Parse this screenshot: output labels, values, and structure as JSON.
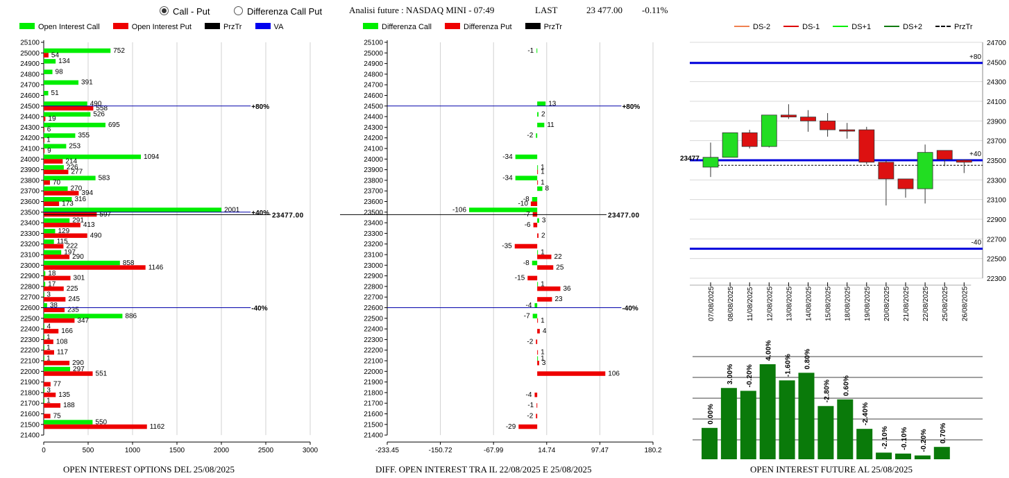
{
  "header": {
    "radio_call_put": "Call - Put",
    "radio_diff": "Differenza Call Put",
    "title": "Analisi future : NASDAQ MINI - 07:49",
    "last_label": "LAST",
    "last_value": "23 477.00",
    "change": "-0.11%"
  },
  "left_legend": [
    "Open Interest Call",
    "Open Interest Put",
    "PrzTr",
    "VA"
  ],
  "mid_legend": [
    "Differenza Call",
    "Differenza Put",
    "PrzTr"
  ],
  "right_legend": [
    "DS-2",
    "DS-1",
    "DS+1",
    "DS+2",
    "PrzTr"
  ],
  "colors": {
    "green": "#00ee00",
    "red": "#ee0000",
    "blue": "#0000cc",
    "navy": "#0000aa",
    "dark_green": "#0f7a0f",
    "orange": "#f08050"
  },
  "captions": {
    "left": "OPEN INTEREST OPTIONS DEL 25/08/2025",
    "mid": "DIFF. OPEN INTEREST TRA IL 22/08/2025 E 25/08/2025",
    "right": "OPEN INTEREST FUTURE AL 25/08/2025"
  },
  "chart_data": [
    {
      "type": "bar",
      "title": "OPEN INTEREST OPTIONS DEL 25/08/2025",
      "orientation": "horizontal",
      "strikes": [
        25100,
        25000,
        24900,
        24800,
        24700,
        24600,
        24500,
        24400,
        24300,
        24200,
        24100,
        24000,
        23900,
        23800,
        23700,
        23600,
        23500,
        23400,
        23300,
        23200,
        23100,
        23000,
        22900,
        22800,
        22700,
        22600,
        22500,
        22400,
        22300,
        22200,
        22100,
        22000,
        21900,
        21800,
        21700,
        21600,
        21500,
        21400
      ],
      "xticks": [
        0,
        500,
        1000,
        1500,
        2000,
        2500,
        3000
      ],
      "xlim": [
        0,
        3000
      ],
      "series": [
        {
          "name": "Open Interest Call",
          "points": [
            [
              25000,
              752
            ],
            [
              24900,
              134
            ],
            [
              24800,
              98
            ],
            [
              24700,
              391
            ],
            [
              24600,
              51
            ],
            [
              24500,
              490
            ],
            [
              24400,
              526
            ],
            [
              24300,
              695
            ],
            [
              24200,
              355
            ],
            [
              24100,
              253
            ],
            [
              24000,
              1094
            ],
            [
              23900,
              226
            ],
            [
              23800,
              583
            ],
            [
              23700,
              270
            ],
            [
              23600,
              316
            ],
            [
              23500,
              2001
            ],
            [
              23400,
              291
            ],
            [
              23300,
              129
            ],
            [
              23200,
              115
            ],
            [
              23100,
              197
            ],
            [
              23000,
              858
            ],
            [
              22900,
              18
            ],
            [
              22800,
              17
            ],
            [
              22700,
              3
            ],
            [
              22600,
              38
            ],
            [
              22500,
              886
            ],
            [
              22400,
              4
            ],
            [
              22300,
              1
            ],
            [
              22200,
              1
            ],
            [
              22100,
              1
            ],
            [
              22000,
              297
            ],
            [
              21800,
              3
            ],
            [
              21700,
              1
            ],
            [
              21500,
              550
            ]
          ]
        },
        {
          "name": "Open Interest Put",
          "points": [
            [
              25000,
              54
            ],
            [
              24500,
              558
            ],
            [
              24400,
              19
            ],
            [
              24300,
              6
            ],
            [
              24200,
              1
            ],
            [
              24100,
              9
            ],
            [
              24000,
              214
            ],
            [
              23900,
              277
            ],
            [
              23800,
              70
            ],
            [
              23700,
              394
            ],
            [
              23600,
              173
            ],
            [
              23500,
              597
            ],
            [
              23400,
              413
            ],
            [
              23300,
              490
            ],
            [
              23200,
              222
            ],
            [
              23100,
              290
            ],
            [
              23000,
              1146
            ],
            [
              22900,
              301
            ],
            [
              22800,
              225
            ],
            [
              22700,
              245
            ],
            [
              22600,
              235
            ],
            [
              22500,
              347
            ],
            [
              22400,
              166
            ],
            [
              22300,
              108
            ],
            [
              22200,
              117
            ],
            [
              22100,
              290
            ],
            [
              22000,
              551
            ],
            [
              21900,
              77
            ],
            [
              21800,
              135
            ],
            [
              21700,
              188
            ],
            [
              21600,
              75
            ],
            [
              21500,
              1162
            ]
          ]
        }
      ],
      "levels": [
        {
          "label": "+80%",
          "strike": 24500,
          "x": 2330
        },
        {
          "label": "+40%",
          "strike": 23500,
          "x": 2330
        },
        {
          "label": "-40%",
          "strike": 22600,
          "x": 2330
        }
      ],
      "price_line": {
        "value": 23477,
        "label": "23477.00"
      }
    },
    {
      "type": "bar",
      "title": "DIFF. OPEN INTEREST TRA IL 22/08/2025 E 25/08/2025",
      "orientation": "horizontal",
      "strikes": [
        25100,
        25000,
        24900,
        24800,
        24700,
        24600,
        24500,
        24400,
        24300,
        24200,
        24100,
        24000,
        23900,
        23800,
        23700,
        23600,
        23500,
        23400,
        23300,
        23200,
        23100,
        23000,
        22900,
        22800,
        22700,
        22600,
        22500,
        22400,
        22300,
        22200,
        22100,
        22000,
        21900,
        21800,
        21700,
        21600,
        21500,
        21400
      ],
      "xticks": [
        "-233.45",
        "-150.72",
        "-67.99",
        "14.74",
        "97.47",
        "180.2"
      ],
      "xlim": [
        -233.45,
        180.2
      ],
      "series": [
        {
          "name": "Differenza Call",
          "points": [
            [
              25000,
              -1
            ],
            [
              24500,
              13
            ],
            [
              24400,
              2
            ],
            [
              24300,
              11
            ],
            [
              24200,
              -2
            ],
            [
              24000,
              -34
            ],
            [
              23900,
              1
            ],
            [
              23800,
              -34
            ],
            [
              23700,
              8
            ],
            [
              23600,
              -8
            ],
            [
              23500,
              -106
            ],
            [
              23400,
              3
            ],
            [
              23100,
              1
            ],
            [
              23000,
              -8
            ],
            [
              22800,
              1
            ],
            [
              22600,
              -4
            ],
            [
              22500,
              -7
            ],
            [
              22100,
              1
            ]
          ]
        },
        {
          "name": "Differenza Put",
          "points": [
            [
              23900,
              1
            ],
            [
              23800,
              1
            ],
            [
              23600,
              -10
            ],
            [
              23500,
              -7
            ],
            [
              23400,
              -6
            ],
            [
              23300,
              2
            ],
            [
              23200,
              -35
            ],
            [
              23100,
              22
            ],
            [
              23000,
              25
            ],
            [
              22900,
              -15
            ],
            [
              22800,
              36
            ],
            [
              22700,
              23
            ],
            [
              22500,
              1
            ],
            [
              22400,
              4
            ],
            [
              22300,
              -2
            ],
            [
              22200,
              1
            ],
            [
              22100,
              3
            ],
            [
              22000,
              106
            ],
            [
              21800,
              -4
            ],
            [
              21700,
              -1
            ],
            [
              21600,
              -2
            ],
            [
              21500,
              -29
            ]
          ]
        }
      ],
      "levels": [
        {
          "label": "+80%",
          "strike": 24500,
          "x": 131
        },
        {
          "label": "-40%",
          "strike": 22600,
          "x": 131
        }
      ],
      "price_line": {
        "value": 23477,
        "label": "23477.00"
      }
    },
    {
      "type": "candlestick",
      "categories": [
        "07/08/2025",
        "08/08/2025",
        "11/08/2025",
        "12/08/2025",
        "13/08/2025",
        "14/08/2025",
        "15/08/2025",
        "18/08/2025",
        "19/08/2025",
        "20/08/2025",
        "21/08/2025",
        "22/08/2025",
        "25/08/2025",
        "26/08/2025"
      ],
      "yticks": [
        24700,
        24500,
        24300,
        24100,
        23900,
        23700,
        23500,
        23300,
        23100,
        22900,
        22700,
        22500,
        22300
      ],
      "ylim": [
        22300,
        24700
      ],
      "candles": [
        {
          "o": 23430,
          "c": 23530,
          "h": 23680,
          "l": 23330
        },
        {
          "o": 23530,
          "c": 23780,
          "h": 23780,
          "l": 23530
        },
        {
          "o": 23780,
          "c": 23640,
          "h": 23810,
          "l": 23620
        },
        {
          "o": 23640,
          "c": 23960,
          "h": 23960,
          "l": 23630
        },
        {
          "o": 23960,
          "c": 23940,
          "h": 24070,
          "l": 23920
        },
        {
          "o": 23940,
          "c": 23900,
          "h": 24010,
          "l": 23790
        },
        {
          "o": 23900,
          "c": 23810,
          "h": 23980,
          "l": 23740
        },
        {
          "o": 23810,
          "c": 23800,
          "h": 23880,
          "l": 23720
        },
        {
          "o": 23810,
          "c": 23480,
          "h": 23840,
          "l": 23460
        },
        {
          "o": 23480,
          "c": 23310,
          "h": 23500,
          "l": 23040
        },
        {
          "o": 23310,
          "c": 23210,
          "h": 23310,
          "l": 23120
        },
        {
          "o": 23210,
          "c": 23580,
          "h": 23660,
          "l": 23060
        },
        {
          "o": 23600,
          "c": 23510,
          "h": 23600,
          "l": 23440
        },
        {
          "o": 23500,
          "c": 23480,
          "h": 23510,
          "l": 23370
        }
      ],
      "lines": [
        {
          "name": "DS+2",
          "value": 24490,
          "label": "+80"
        },
        {
          "name": "DS+1",
          "value": 23500,
          "label": "+40"
        },
        {
          "name": "DS-1",
          "value": 22600,
          "label": "-40"
        }
      ],
      "przTr": {
        "value": 23477,
        "label": "23477"
      }
    },
    {
      "type": "bar",
      "title": "OPEN INTEREST FUTURE AL 25/08/2025",
      "labels": [
        "0.00%",
        "3.00%",
        "-0.20%",
        "4.00%",
        "-1.60%",
        "0.80%",
        "-2.80%",
        "0.60%",
        "-2.40%",
        "-2.10%",
        "-0.10%",
        "-0.20%",
        "0.70%"
      ],
      "values": [
        0.33,
        0.75,
        0.72,
        1.0,
        0.83,
        0.91,
        0.56,
        0.63,
        0.32,
        0.07,
        0.06,
        0.04,
        0.13
      ]
    }
  ]
}
